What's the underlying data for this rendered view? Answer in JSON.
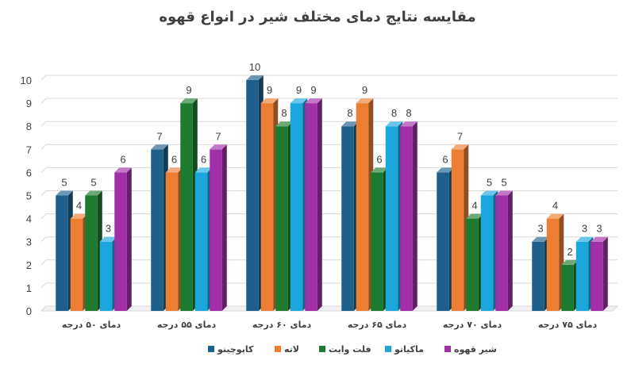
{
  "chart_data": {
    "type": "bar",
    "title": "مقایسه نتایج دمای مختلف شیر در انواع قهوه",
    "categories": [
      "دمای ۵۰ درجه",
      "دمای ۵۵ درجه",
      "دمای ۶۰ درجه",
      "دمای ۶۵ درجه",
      "دمای ۷۰ درجه",
      "دمای ۷۵ درجه"
    ],
    "series": [
      {
        "name": "کاپوچینو",
        "color": "#1f5f8b",
        "values": [
          5,
          7,
          10,
          8,
          6,
          3
        ]
      },
      {
        "name": "لاته",
        "color": "#ed7d31",
        "values": [
          4,
          6,
          9,
          9,
          7,
          4
        ]
      },
      {
        "name": "فلت وایت",
        "color": "#1e7a2e",
        "values": [
          5,
          9,
          8,
          6,
          4,
          2
        ]
      },
      {
        "name": "ماکیاتو",
        "color": "#1aa7de",
        "values": [
          3,
          6,
          9,
          8,
          5,
          3
        ]
      },
      {
        "name": "شیر قهوه",
        "color": "#a12fa8",
        "values": [
          6,
          7,
          9,
          8,
          5,
          3
        ]
      }
    ],
    "ylim": [
      0,
      10
    ],
    "yticks": [
      "0",
      "1",
      "2",
      "3",
      "4",
      "5",
      "6",
      "7",
      "8",
      "9",
      "10"
    ],
    "grid": true,
    "legend_position": "bottom",
    "style": "3d-column"
  }
}
